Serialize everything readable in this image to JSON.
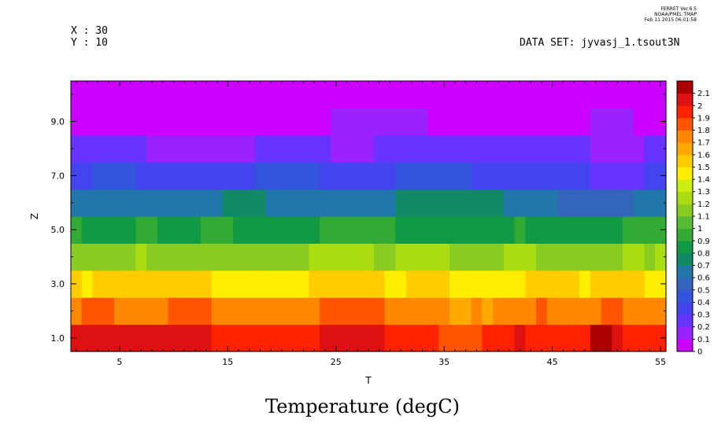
{
  "header": {
    "x_label": "X : 30",
    "y_label": "Y : 10",
    "dataset": "DATA SET: jyvasj_1.tsout3N",
    "ferret_version": "FERRET Ver.6.5",
    "ferret_org": "NOAA/PMEL TMAP",
    "ferret_date": "Feb 11 2015 06:01:58"
  },
  "chart_data": {
    "type": "heatmap",
    "title": "Temperature (degC)",
    "xlabel": "T",
    "ylabel": "Z",
    "xlim": [
      0.5,
      55.5
    ],
    "ylim": [
      0.5,
      10.5
    ],
    "xticks": [
      5,
      15,
      25,
      35,
      45,
      55
    ],
    "xtick_labels": [
      "5",
      "15",
      "25",
      "35",
      "45",
      "55"
    ],
    "yticks": [
      1,
      3,
      5,
      7,
      9
    ],
    "ytick_labels": [
      "1.0",
      "3.0",
      "5.0",
      "7.0",
      "9.0"
    ],
    "t": [
      1,
      2,
      3,
      4,
      5,
      6,
      7,
      8,
      9,
      10,
      11,
      12,
      13,
      14,
      15,
      16,
      17,
      18,
      19,
      20,
      21,
      22,
      23,
      24,
      25,
      26,
      27,
      28,
      29,
      30,
      31,
      32,
      33,
      34,
      35,
      36,
      37,
      38,
      39,
      40,
      41,
      42,
      43,
      44,
      45,
      46,
      47,
      48,
      49,
      50,
      51,
      52,
      53,
      54,
      55
    ],
    "z": [
      1,
      2,
      3,
      4,
      5,
      6,
      7,
      8,
      9,
      10
    ],
    "values": [
      [
        2.0,
        2.05,
        2.05,
        2.05,
        2.05,
        2.05,
        2.05,
        2.05,
        2.05,
        2.05,
        2.05,
        2.05,
        2.05,
        1.9,
        1.9,
        1.9,
        1.9,
        1.95,
        1.95,
        1.95,
        1.95,
        1.95,
        1.95,
        2.0,
        2.0,
        2.0,
        2.0,
        2.0,
        2.0,
        1.95,
        1.95,
        1.95,
        1.9,
        1.9,
        1.85,
        1.85,
        1.85,
        1.85,
        1.95,
        1.9,
        1.95,
        2.0,
        1.95,
        1.95,
        1.95,
        1.95,
        1.95,
        1.95,
        2.1,
        2.1,
        2.0,
        1.9,
        1.9,
        1.9,
        1.9
      ],
      [
        1.7,
        1.8,
        1.85,
        1.8,
        1.75,
        1.75,
        1.75,
        1.75,
        1.75,
        1.8,
        1.8,
        1.8,
        1.8,
        1.75,
        1.75,
        1.75,
        1.7,
        1.75,
        1.75,
        1.75,
        1.75,
        1.75,
        1.75,
        1.8,
        1.8,
        1.8,
        1.8,
        1.8,
        1.8,
        1.75,
        1.75,
        1.75,
        1.75,
        1.75,
        1.75,
        1.65,
        1.65,
        1.7,
        1.65,
        1.75,
        1.7,
        1.75,
        1.75,
        1.8,
        1.75,
        1.75,
        1.75,
        1.7,
        1.75,
        1.8,
        1.8,
        1.75,
        1.75,
        1.7,
        1.7
      ],
      [
        1.5,
        1.45,
        1.5,
        1.5,
        1.5,
        1.5,
        1.5,
        1.5,
        1.5,
        1.5,
        1.5,
        1.5,
        1.5,
        1.45,
        1.45,
        1.45,
        1.4,
        1.45,
        1.45,
        1.45,
        1.45,
        1.45,
        1.5,
        1.55,
        1.55,
        1.55,
        1.55,
        1.5,
        1.5,
        1.45,
        1.45,
        1.5,
        1.5,
        1.5,
        1.5,
        1.45,
        1.45,
        1.45,
        1.45,
        1.45,
        1.45,
        1.45,
        1.5,
        1.5,
        1.5,
        1.5,
        1.5,
        1.45,
        1.5,
        1.55,
        1.55,
        1.5,
        1.5,
        1.45,
        1.4
      ],
      [
        1.1,
        1.15,
        1.15,
        1.15,
        1.15,
        1.15,
        1.2,
        1.15,
        1.15,
        1.15,
        1.15,
        1.15,
        1.15,
        1.15,
        1.15,
        1.1,
        1.15,
        1.1,
        1.1,
        1.15,
        1.15,
        1.15,
        1.2,
        1.2,
        1.2,
        1.2,
        1.2,
        1.2,
        1.1,
        1.15,
        1.2,
        1.2,
        1.2,
        1.2,
        1.2,
        1.15,
        1.15,
        1.15,
        1.15,
        1.15,
        1.2,
        1.2,
        1.2,
        1.15,
        1.15,
        1.15,
        1.15,
        1.1,
        1.15,
        1.15,
        1.15,
        1.2,
        1.25,
        1.15,
        1.2
      ],
      [
        0.9,
        0.85,
        0.85,
        0.85,
        0.85,
        0.85,
        0.9,
        0.9,
        0.85,
        0.85,
        0.85,
        0.85,
        0.9,
        0.9,
        0.9,
        0.85,
        0.85,
        0.85,
        0.85,
        0.85,
        0.85,
        0.85,
        0.85,
        0.9,
        0.9,
        0.95,
        0.9,
        0.9,
        0.9,
        0.9,
        0.85,
        0.85,
        0.85,
        0.85,
        0.85,
        0.85,
        0.85,
        0.85,
        0.85,
        0.85,
        0.85,
        0.9,
        0.85,
        0.85,
        0.85,
        0.8,
        0.8,
        0.8,
        0.8,
        0.85,
        0.85,
        0.9,
        0.9,
        0.9,
        0.9
      ],
      [
        0.65,
        0.65,
        0.6,
        0.6,
        0.6,
        0.6,
        0.6,
        0.65,
        0.65,
        0.6,
        0.6,
        0.6,
        0.6,
        0.65,
        0.7,
        0.7,
        0.7,
        0.7,
        0.65,
        0.65,
        0.6,
        0.6,
        0.6,
        0.6,
        0.65,
        0.65,
        0.65,
        0.65,
        0.65,
        0.65,
        0.75,
        0.75,
        0.75,
        0.75,
        0.75,
        0.75,
        0.7,
        0.7,
        0.7,
        0.7,
        0.65,
        0.65,
        0.65,
        0.6,
        0.6,
        0.55,
        0.55,
        0.55,
        0.5,
        0.5,
        0.55,
        0.55,
        0.6,
        0.6,
        0.6
      ],
      [
        0.35,
        0.35,
        0.4,
        0.4,
        0.4,
        0.4,
        0.3,
        0.3,
        0.3,
        0.3,
        0.3,
        0.3,
        0.3,
        0.3,
        0.3,
        0.3,
        0.35,
        0.4,
        0.4,
        0.4,
        0.4,
        0.4,
        0.4,
        0.35,
        0.35,
        0.35,
        0.35,
        0.35,
        0.35,
        0.35,
        0.4,
        0.4,
        0.4,
        0.4,
        0.4,
        0.4,
        0.4,
        0.35,
        0.35,
        0.35,
        0.35,
        0.35,
        0.3,
        0.3,
        0.3,
        0.35,
        0.35,
        0.35,
        0.25,
        0.25,
        0.25,
        0.25,
        0.25,
        0.35,
        0.35
      ],
      [
        0.25,
        0.25,
        0.25,
        0.25,
        0.25,
        0.25,
        0.25,
        0.15,
        0.15,
        0.15,
        0.15,
        0.15,
        0.15,
        0.15,
        0.15,
        0.15,
        0.15,
        0.2,
        0.2,
        0.2,
        0.2,
        0.2,
        0.2,
        0.2,
        0.1,
        0.1,
        0.1,
        0.1,
        0.2,
        0.2,
        0.2,
        0.2,
        0.2,
        0.2,
        0.2,
        0.2,
        0.2,
        0.2,
        0.2,
        0.2,
        0.2,
        0.2,
        0.2,
        0.2,
        0.2,
        0.2,
        0.2,
        0.2,
        0.1,
        0.1,
        0.1,
        0.1,
        0.1,
        0.25,
        0.25
      ],
      [
        0.05,
        0.05,
        0.05,
        0.05,
        0.05,
        0.05,
        0.05,
        0.05,
        0.05,
        0.05,
        0.05,
        0.05,
        0.05,
        0.05,
        0.05,
        0.05,
        0.05,
        0.05,
        0.05,
        0.05,
        0.05,
        0.05,
        0.05,
        0.05,
        0.1,
        0.1,
        0.1,
        0.1,
        0.1,
        0.1,
        0.1,
        0.1,
        0.1,
        0.05,
        0.05,
        0.05,
        0.05,
        0.05,
        0.05,
        0.05,
        0.05,
        0.05,
        0.05,
        0.05,
        0.05,
        0.05,
        0.05,
        0.05,
        0.1,
        0.1,
        0.1,
        0.1,
        0.05,
        0.05,
        0.05
      ],
      [
        0.05,
        0.05,
        0.05,
        0.05,
        0.05,
        0.05,
        0.05,
        0.05,
        0.05,
        0.05,
        0.05,
        0.05,
        0.05,
        0.05,
        0.05,
        0.05,
        0.05,
        0.05,
        0.05,
        0.05,
        0.05,
        0.05,
        0.05,
        0.05,
        0.05,
        0.05,
        0.05,
        0.05,
        0.05,
        0.05,
        0.05,
        0.05,
        0.05,
        0.05,
        0.05,
        0.05,
        0.05,
        0.05,
        0.05,
        0.05,
        0.05,
        0.05,
        0.05,
        0.05,
        0.05,
        0.05,
        0.05,
        0.05,
        0.05,
        0.05,
        0.05,
        0.05,
        0.05,
        0.05,
        0.05
      ]
    ],
    "colorbar": {
      "levels": [
        0,
        0.1,
        0.2,
        0.3,
        0.4,
        0.5,
        0.6,
        0.7,
        0.8,
        0.9,
        1,
        1.1,
        1.2,
        1.3,
        1.4,
        1.5,
        1.6,
        1.7,
        1.8,
        1.9,
        2,
        2.1,
        2.2
      ],
      "labels": [
        "0",
        "0.1",
        "0.2",
        "0.3",
        "0.4",
        "0.5",
        "0.6",
        "0.7",
        "0.8",
        "0.9",
        "1",
        "1.1",
        "1.2",
        "1.3",
        "1.4",
        "1.5",
        "1.6",
        "1.7",
        "1.8",
        "1.9",
        "2",
        "2.1"
      ],
      "colors": [
        "#cc00ff",
        "#9922ff",
        "#6633ff",
        "#4444ee",
        "#3355dd",
        "#3366bb",
        "#2277aa",
        "#118866",
        "#119944",
        "#33aa33",
        "#55bb33",
        "#88cc22",
        "#aadd11",
        "#ccee11",
        "#ffee00",
        "#ffcc00",
        "#ffaa00",
        "#ff8800",
        "#ff5500",
        "#ff2200",
        "#dd1111",
        "#aa0000"
      ]
    }
  }
}
